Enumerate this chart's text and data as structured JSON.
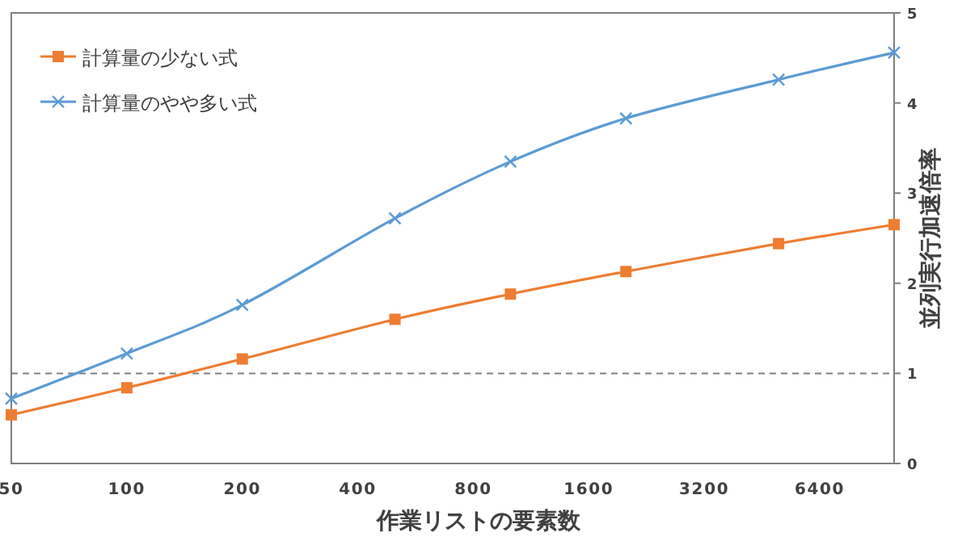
{
  "chart_data": {
    "type": "line",
    "xlabel": "作業リストの要素数",
    "ylabel": "並列実行加速倍率",
    "x": [
      50,
      100,
      200,
      500,
      1000,
      2000,
      5000,
      10000
    ],
    "series": [
      {
        "name": "計算量の少ない式",
        "color": "#ed7d31",
        "marker": "square",
        "values": [
          0.54,
          0.84,
          1.16,
          1.6,
          1.88,
          2.13,
          2.44,
          2.65
        ]
      },
      {
        "name": "計算量のやや多い式",
        "color": "#5b9bd5",
        "marker": "cross",
        "values": [
          0.72,
          1.22,
          1.76,
          2.72,
          3.35,
          3.83,
          4.26,
          4.56
        ]
      }
    ],
    "log": "x",
    "xlim": [
      50,
      10000
    ],
    "xticks": [
      50,
      100,
      200,
      400,
      800,
      1600,
      3200,
      6400
    ],
    "ylim": [
      0,
      5
    ],
    "yticks": [
      0,
      1,
      2,
      3,
      4,
      5
    ],
    "ref_lines": [
      {
        "axis": "y",
        "value": 1,
        "color": "#808080",
        "line_style": "dashed"
      }
    ],
    "legend": "top left",
    "grid": false
  }
}
